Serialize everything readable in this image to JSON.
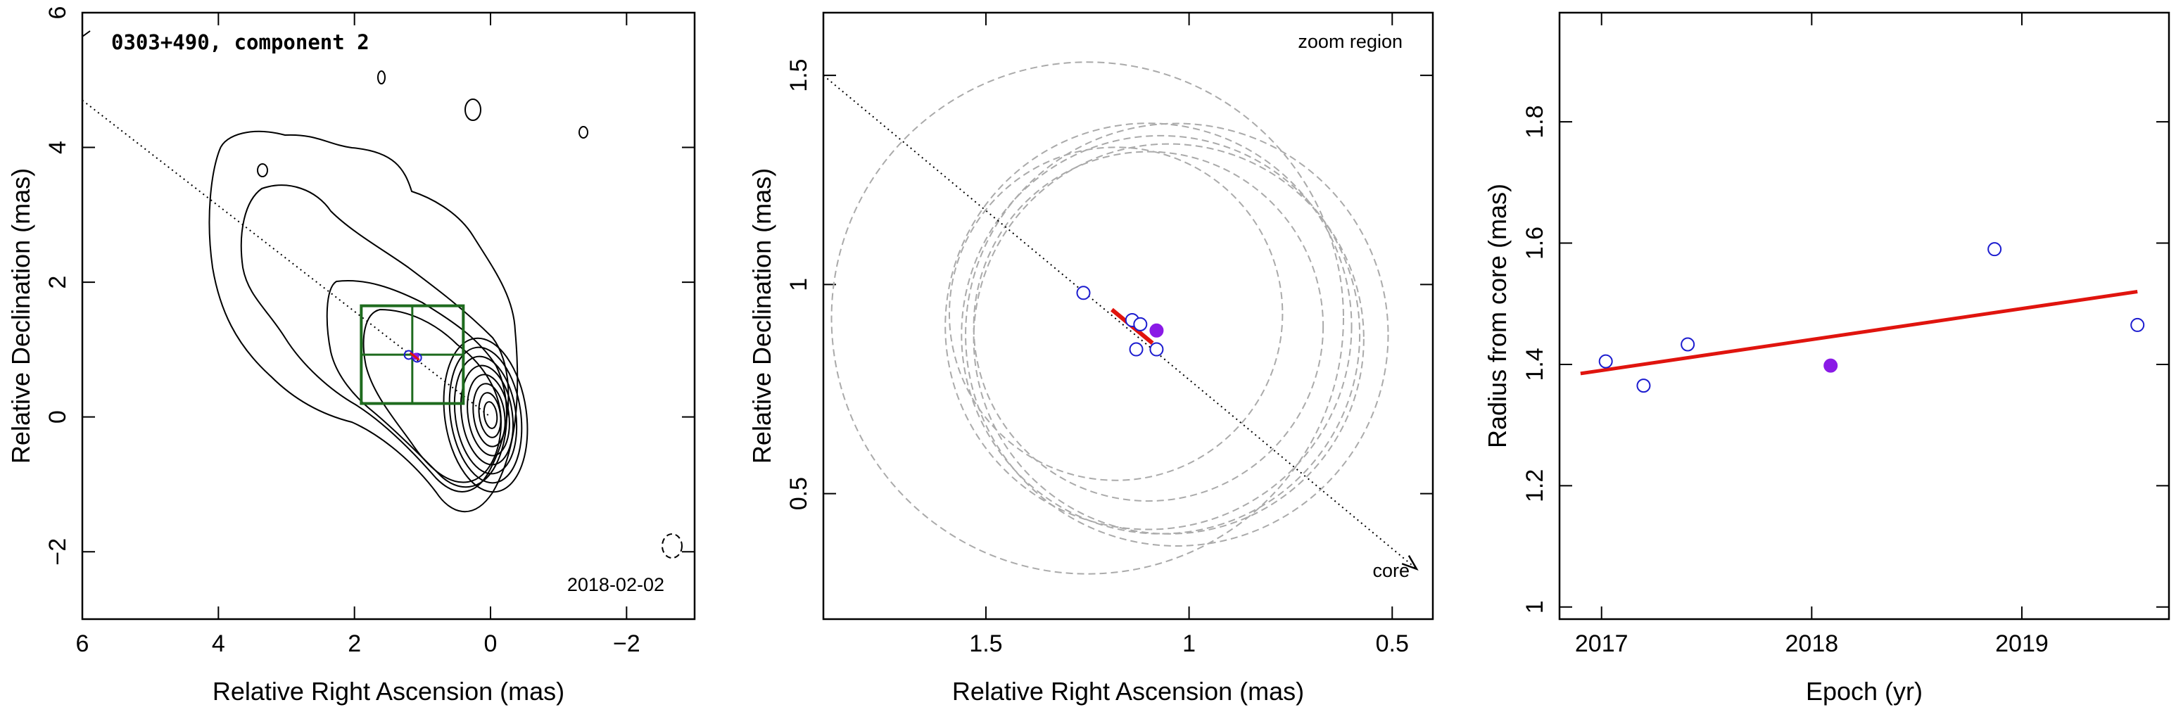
{
  "chart_data": [
    {
      "type": "contour",
      "title": "0303+490, component 2",
      "annotation": "2018-02-02",
      "xlabel": "Relative Right Ascension (mas)",
      "ylabel": "Relative Declination (mas)",
      "xlim": [
        6,
        -3
      ],
      "ylim": [
        -3,
        6
      ],
      "xticks": [
        6,
        4,
        2,
        0,
        -2
      ],
      "yticks": [
        -2,
        0,
        2,
        4,
        6
      ],
      "xtick_labels": [
        "6",
        "4",
        "2",
        "0",
        "−2"
      ],
      "ytick_labels": [
        "−2",
        "0",
        "2",
        "4",
        "6"
      ],
      "core_position": [
        0,
        0
      ],
      "component_position": [
        1.1,
        0.9
      ],
      "zoom_box": {
        "x": [
          1.9,
          0.4
        ],
        "y": [
          0.2,
          1.65
        ]
      },
      "direction_line": {
        "from": [
          6,
          4.7
        ],
        "to": [
          0,
          0
        ]
      },
      "contour_color": "#000000",
      "zoom_box_color": "#1e6b1e"
    },
    {
      "type": "scatter",
      "title": "zoom region",
      "annotation": "core",
      "xlabel": "Relative Right Ascension (mas)",
      "ylabel": "Relative Declination (mas)",
      "xlim": [
        1.9,
        0.4
      ],
      "ylim": [
        0.2,
        1.65
      ],
      "xticks": [
        1.5,
        1,
        0.5
      ],
      "yticks": [
        0.5,
        1,
        1.5
      ],
      "xtick_labels": [
        "1.5",
        "1",
        "0.5"
      ],
      "ytick_labels": [
        "0.5",
        "1",
        "1.5"
      ],
      "series": [
        {
          "kind": "open",
          "color": "#1c1ccf",
          "x": [
            1.26,
            1.14,
            1.12,
            1.13,
            1.08
          ],
          "y": [
            0.98,
            0.915,
            0.905,
            0.845,
            0.845
          ]
        },
        {
          "kind": "filled",
          "color": "#8a1ae6",
          "x": [
            1.08
          ],
          "y": [
            0.89
          ]
        }
      ],
      "fit_line": {
        "color": "#e0140e",
        "x": [
          1.19,
          1.09
        ],
        "y": [
          0.94,
          0.86
        ]
      },
      "uncertainty_circles": [
        {
          "cx": 1.25,
          "cy": 0.92,
          "r": 0.63
        },
        {
          "cx": 1.1,
          "cy": 0.9,
          "r": 0.5
        },
        {
          "cx": 1.1,
          "cy": 0.9,
          "r": 0.43
        },
        {
          "cx": 1.07,
          "cy": 0.88,
          "r": 0.49
        },
        {
          "cx": 1.05,
          "cy": 0.87,
          "r": 0.48
        },
        {
          "cx": 1.03,
          "cy": 0.88,
          "r": 0.52
        },
        {
          "cx": 1.18,
          "cy": 0.93,
          "r": 0.41
        }
      ],
      "direction_line": {
        "from": [
          1.9,
          1.5
        ],
        "to": [
          0.44,
          0.32
        ]
      }
    },
    {
      "type": "scatter",
      "xlabel": "Epoch (yr)",
      "ylabel": "Radius from core (mas)",
      "xlim": [
        2016.8,
        2019.7
      ],
      "ylim": [
        0.98,
        1.98
      ],
      "xticks": [
        2017,
        2018,
        2019
      ],
      "yticks": [
        1,
        1.2,
        1.4,
        1.6,
        1.8
      ],
      "xtick_labels": [
        "2017",
        "2018",
        "2019"
      ],
      "ytick_labels": [
        "1",
        "1.2",
        "1.4",
        "1.6",
        "1.8"
      ],
      "series": [
        {
          "kind": "open",
          "color": "#1c1ccf",
          "x": [
            2017.02,
            2017.2,
            2017.41,
            2018.87,
            2019.55
          ],
          "y": [
            1.405,
            1.365,
            1.433,
            1.59,
            1.465
          ]
        },
        {
          "kind": "filled",
          "color": "#8a1ae6",
          "x": [
            2018.09
          ],
          "y": [
            1.398
          ]
        }
      ],
      "fit_line": {
        "color": "#e0140e",
        "x": [
          2016.9,
          2019.55
        ],
        "y": [
          1.385,
          1.52
        ]
      }
    }
  ]
}
